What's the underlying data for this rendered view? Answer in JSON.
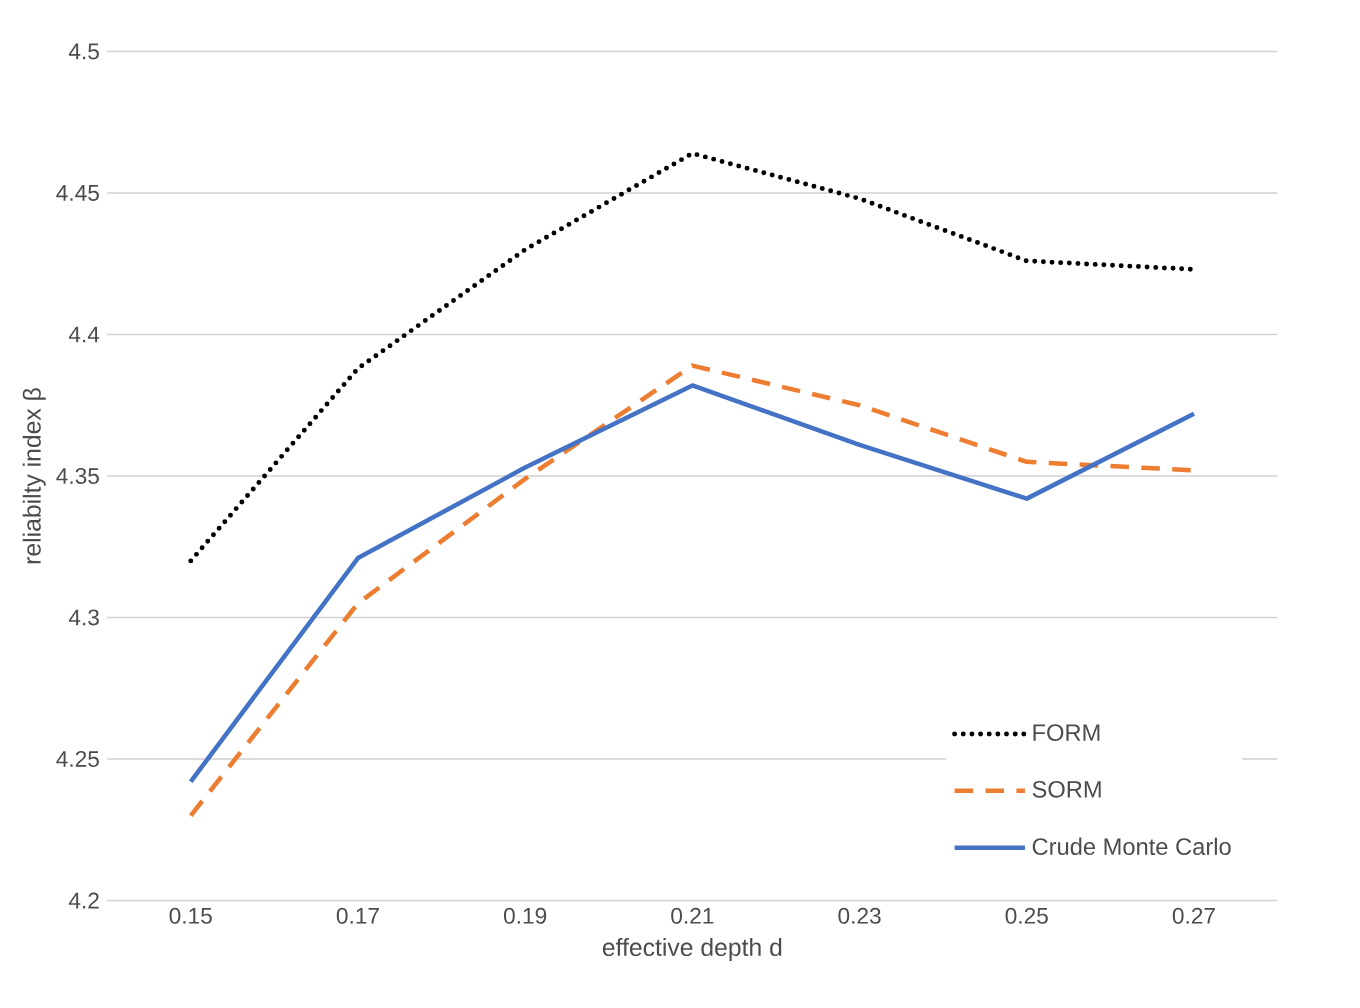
{
  "chart_data": {
    "type": "line",
    "xlabel": "effective depth d",
    "ylabel": "reliabilty index β",
    "categories": [
      "0.15",
      "0.17",
      "0.19",
      "0.21",
      "0.23",
      "0.25",
      "0.27"
    ],
    "series": [
      {
        "name": "FORM",
        "color": "#000000",
        "line_style": "dotted",
        "values": [
          4.32,
          4.388,
          4.43,
          4.464,
          4.448,
          4.426,
          4.423
        ]
      },
      {
        "name": "SORM",
        "color": "#ed7d31",
        "line_style": "dashed",
        "values": [
          4.23,
          4.305,
          4.349,
          4.389,
          4.375,
          4.355,
          4.352
        ]
      },
      {
        "name": "Crude Monte Carlo",
        "color": "#4472c4",
        "line_style": "solid",
        "values": [
          4.242,
          4.321,
          4.353,
          4.382,
          4.361,
          4.342,
          4.372
        ]
      }
    ],
    "ylim": [
      4.2,
      4.5
    ],
    "yticks": [
      4.2,
      4.25,
      4.3,
      4.35,
      4.4,
      4.45,
      4.5
    ],
    "grid": "y",
    "legend": "bottom right",
    "marker": "none"
  }
}
